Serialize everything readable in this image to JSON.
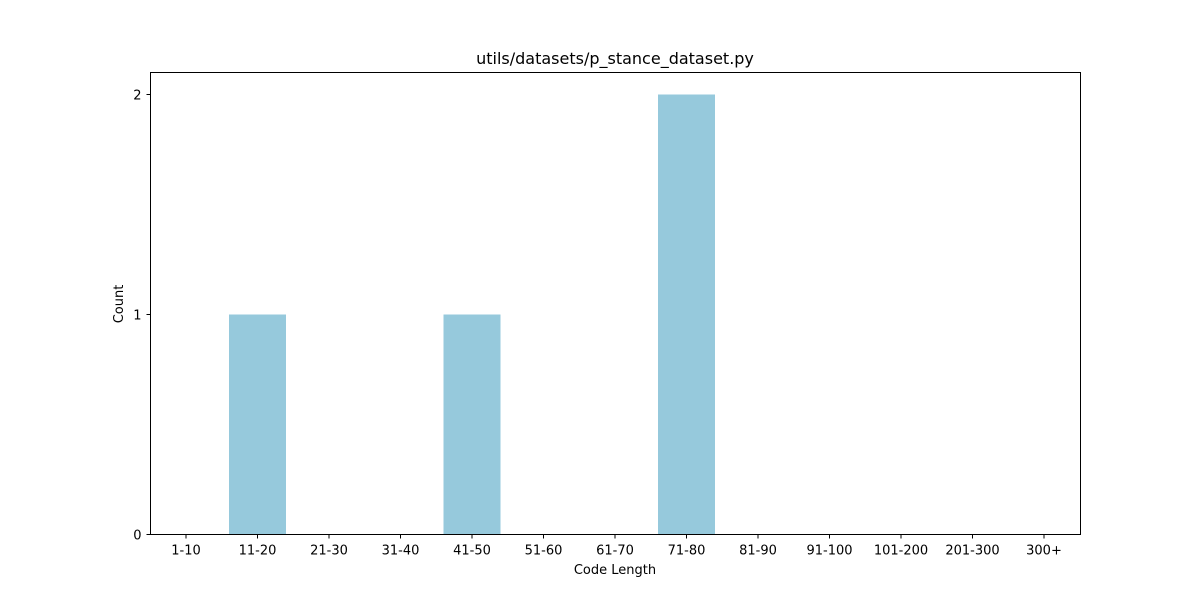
{
  "chart_data": {
    "type": "bar",
    "title": "utils/datasets/p_stance_dataset.py",
    "xlabel": "Code Length",
    "ylabel": "Count",
    "categories": [
      "1-10",
      "11-20",
      "21-30",
      "31-40",
      "41-50",
      "51-60",
      "61-70",
      "71-80",
      "81-90",
      "91-100",
      "101-200",
      "201-300",
      "300+"
    ],
    "values": [
      0,
      1,
      0,
      0,
      1,
      0,
      0,
      2,
      0,
      0,
      0,
      0,
      0
    ],
    "ylim": [
      0,
      2.1
    ],
    "yticks": [
      0,
      1,
      2
    ],
    "bar_color": "#96c9dc",
    "grid": false,
    "legend": "none"
  }
}
